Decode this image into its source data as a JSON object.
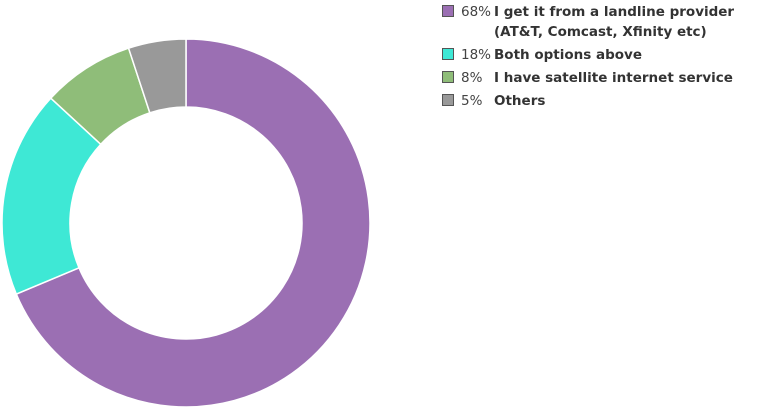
{
  "chart_data": {
    "type": "pie",
    "title": "",
    "donut": true,
    "legend_position": "top-right",
    "slices": [
      {
        "label": "I get it from a landline provider (AT&T, Comcast, Xfinity etc)",
        "value": 68,
        "percent_label": "68%",
        "color": "#9b6fb3"
      },
      {
        "label": "Both options above",
        "value": 18,
        "percent_label": "18%",
        "color": "#3ee8d5"
      },
      {
        "label": "I have satellite internet service",
        "value": 8,
        "percent_label": "8%",
        "color": "#8fbd79"
      },
      {
        "label": "Others",
        "value": 5,
        "percent_label": "5%",
        "color": "#999999"
      }
    ]
  }
}
